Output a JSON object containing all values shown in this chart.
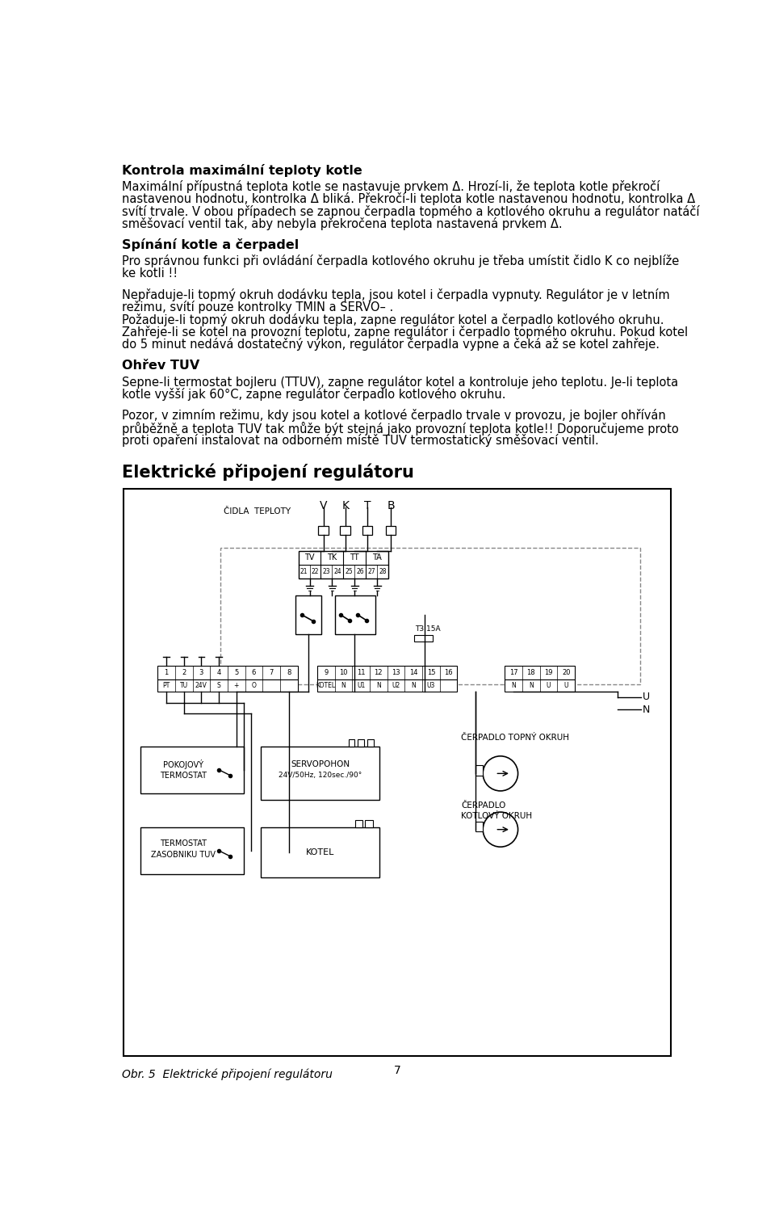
{
  "bg": "#ffffff",
  "fg": "#000000",
  "title1": "Kontrola maximální teploty kotle",
  "title2": "Spínání kotle a čerpadel",
  "title3": "Ohřev TUV",
  "title4": "Elektrické připojení regulátoru",
  "fig_caption": "Obr. 5  Elektrické připojení regulátoru",
  "page_num": "7",
  "para1": [
    "Maximální přípustná teplota kotle se nastavuje prvkem Δ. Hrozí-li, že teplota kotle překročí",
    "nastavenou hodnotu, kontrolka Δ bliká. Překročí-li teplota kotle nastavenou hodnotu, kontrolka Δ",
    "svítí trvale. V obou případech se zapnou čerpadla topmého a kotlového okruhu a regulátor natáčí",
    "směšovací ventil tak, aby nebyla překročena teplota nastavená prvkem Δ."
  ],
  "para2": [
    "Pro správnou funkci při ovládání čerpadla kotlového okruhu je třeba umístit čidlo K co nejblíže",
    "ke kotli !!"
  ],
  "para3": [
    "Nepřaduje-li topmý okruh dodávku tepla, jsou kotel i čerpadla vypnuty. Regulátor je v letním",
    "režimu, svítí pouze kontrolky TMIN a SERVO– .",
    "Požaduje-li topmý okruh dodávku tepla, zapne regulátor kotel a čerpadlo kotlového okruhu.",
    "Zahřeje-li se kotel na provozní teplotu, zapne regulátor i čerpadlo topmého okruhu. Pokud kotel",
    "do 5 minut nedává dostatečný výkon, regulátor čerpadla vypne a čeká až se kotel zahřeje."
  ],
  "para4": [
    "Sepne-li termostat bojleru (TTUV), zapne regulátor kotel a kontroluje jeho teplotu. Je-li teplota",
    "kotle vyšší jak 60°C, zapne regulátor čerpadlo kotlového okruhu."
  ],
  "para5": [
    "Pozor, v zimním režimu, kdy jsou kotel a kotlové čerpadlo trvale v provozu, je bojler ohříván",
    "průběžně a teplota TUV tak může být stejná jako provozní teplota kotle!! Doporučujeme proto",
    "proti opaření instalovat na odborném místě TUV termostatický směšovací ventil."
  ]
}
